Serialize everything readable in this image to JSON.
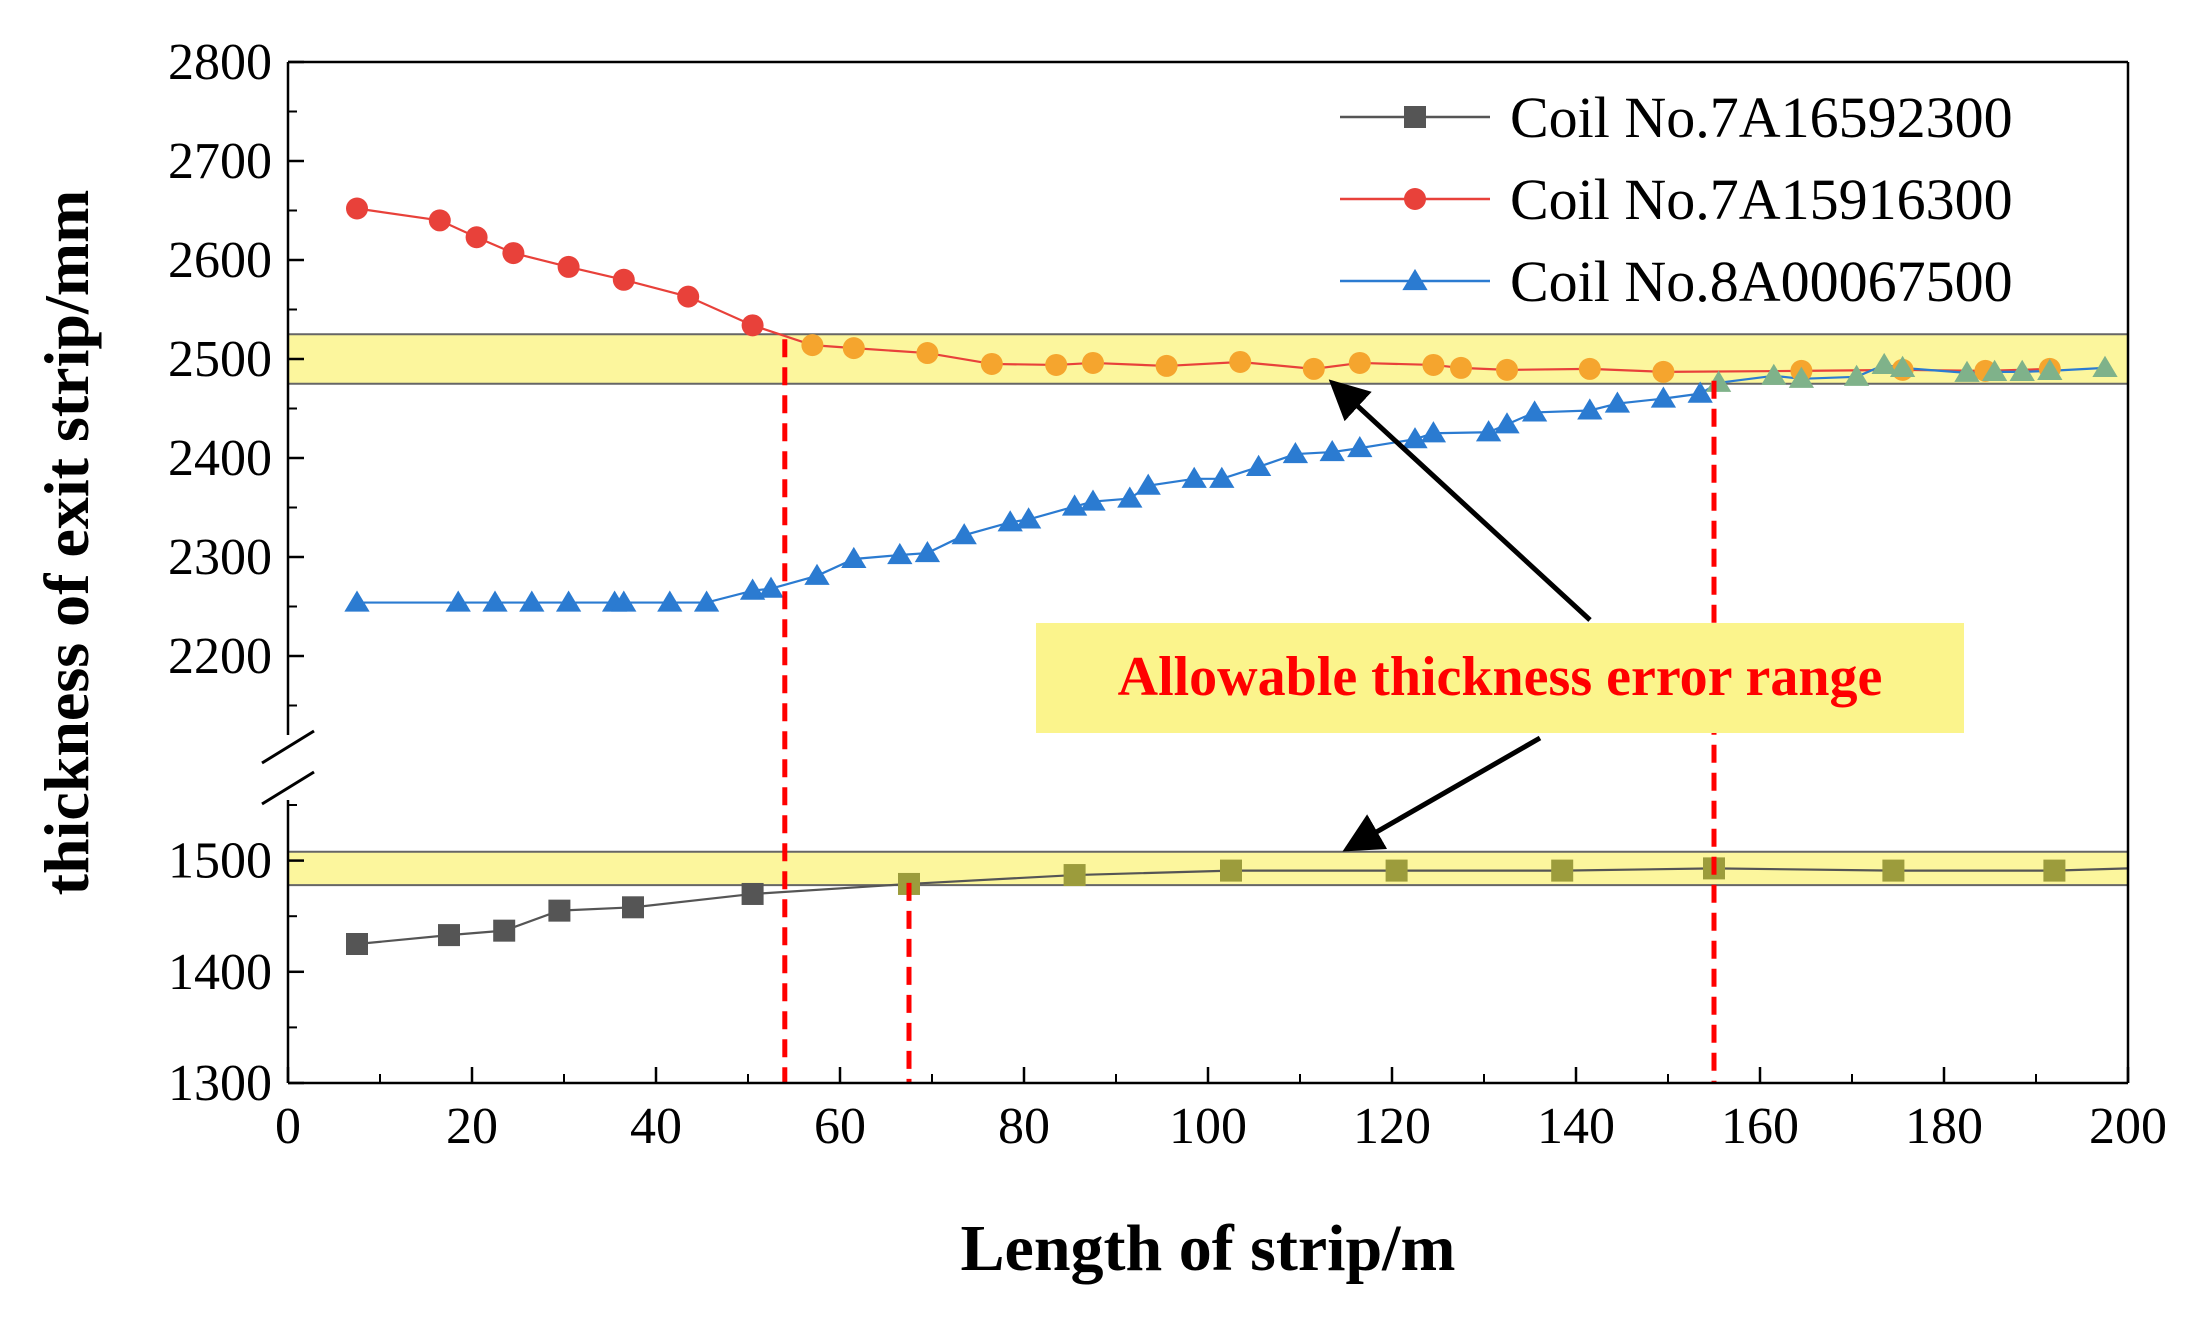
{
  "chart_data": {
    "type": "line",
    "title": "",
    "xlabel": "Length of strip/m",
    "ylabel": "thickness of exit strip/mm",
    "xlim": [
      0,
      200
    ],
    "x_ticks": [
      0,
      20,
      40,
      60,
      80,
      100,
      120,
      140,
      160,
      180,
      200
    ],
    "y_axis_break": {
      "lower_segment": [
        1300,
        1550
      ],
      "upper_segment": [
        2100,
        2800
      ]
    },
    "y_ticks": [
      1300,
      1400,
      1500,
      2200,
      2300,
      2400,
      2500,
      2600,
      2700,
      2800
    ],
    "legend_position": "top-right",
    "series": [
      {
        "name": "Coil No.7A16592300",
        "color": "#555555",
        "marker": "square",
        "x": [
          7.5,
          17.5,
          23.5,
          29.5,
          37.5,
          50.5,
          67.5,
          85.5,
          102.5,
          120.5,
          138.5,
          155,
          174.5,
          192,
          200
        ],
        "y": [
          1425,
          1433,
          1437,
          1455,
          1458,
          1470,
          1479,
          1487,
          1491,
          1491,
          1491,
          1493,
          1491,
          1491,
          1493
        ]
      },
      {
        "name": "Coil No.7A15916300",
        "color": "#e8413a",
        "marker": "circle",
        "x": [
          7.5,
          16.5,
          20.5,
          24.5,
          30.5,
          36.5,
          43.5,
          50.5,
          57,
          61.5,
          69.5,
          76.5,
          83.5,
          87.5,
          95.5,
          103.5,
          111.5,
          116.5,
          124.5,
          127.5,
          132.5,
          141.5,
          149.5,
          164.5,
          175.5,
          184.5,
          191.5
        ],
        "y": [
          2652,
          2640,
          2623,
          2607,
          2593,
          2580,
          2563,
          2534,
          2514,
          2511,
          2506,
          2495,
          2494,
          2496,
          2493,
          2497,
          2490,
          2496,
          2494,
          2491,
          2489,
          2490,
          2487,
          2488,
          2489,
          2488,
          2490
        ]
      },
      {
        "name": "Coil No.8A00067500",
        "color": "#2b7bd1",
        "marker": "triangle",
        "x": [
          7.5,
          18.5,
          22.5,
          26.5,
          30.5,
          35.5,
          36.5,
          41.5,
          45.5,
          50.5,
          52.5,
          57.5,
          61.5,
          66.5,
          69.5,
          73.5,
          78.5,
          80.5,
          85.5,
          87.5,
          91.5,
          93.5,
          98.5,
          101.5,
          105.5,
          109.5,
          113.5,
          116.5,
          122.5,
          124.5,
          130.5,
          132.5,
          135.5,
          141.5,
          144.5,
          149.5,
          153.5,
          155.5,
          161.5,
          164.5,
          170.5,
          173.5,
          175.5,
          182.5,
          185.5,
          188.5,
          191.5,
          197.5
        ],
        "y": [
          2254,
          2254,
          2254,
          2254,
          2254,
          2254,
          2254,
          2254,
          2254,
          2266,
          2268,
          2281,
          2298,
          2302,
          2304,
          2322,
          2335,
          2338,
          2351,
          2356,
          2359,
          2372,
          2379,
          2379,
          2391,
          2404,
          2406,
          2410,
          2419,
          2425,
          2426,
          2434,
          2446,
          2448,
          2455,
          2460,
          2465,
          2476,
          2483,
          2480,
          2482,
          2494,
          2491,
          2486,
          2487,
          2487,
          2488,
          2491
        ]
      }
    ],
    "tolerance_bands": [
      {
        "y_range": [
          2475,
          2525
        ],
        "color": "#fbf48c"
      },
      {
        "y_range": [
          1478,
          1508
        ],
        "color": "#fbf48c"
      }
    ],
    "reference_lines": [
      {
        "x": 54,
        "y_from": 1300,
        "y_to": 2520,
        "color": "#ff0000"
      },
      {
        "x": 67.5,
        "y_from": 1300,
        "y_to": 1480,
        "color": "#ff0000"
      },
      {
        "x": 155,
        "y_from": 1300,
        "y_to": 2478,
        "color": "#ff0000"
      }
    ],
    "annotation": {
      "text": "Allowable thickness error range",
      "color": "#ff0000",
      "background": "#fbf48c",
      "arrow_targets": [
        {
          "x": 112,
          "y": 2482
        },
        {
          "x": 114,
          "y": 1505
        }
      ]
    }
  }
}
